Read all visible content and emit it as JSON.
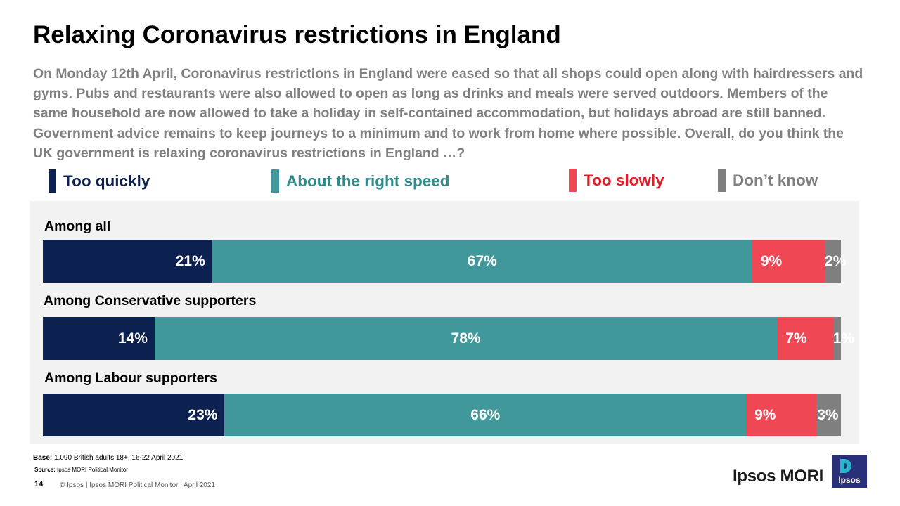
{
  "title": "Relaxing Coronavirus restrictions in England",
  "intro": "On Monday 12th April, Coronavirus restrictions in England were eased so that all shops could open along with hairdressers and gyms. Pubs and restaurants were also allowed to open as long as drinks and meals were served outdoors. Members of the same household are now allowed to take a holiday in self-contained accommodation, but holidays abroad are still banned. Government advice remains to keep journeys to a minimum and to work from home where possible. Overall, do you think the UK government is relaxing coronavirus restrictions in England …?",
  "chart_data": {
    "type": "bar",
    "orientation": "horizontal",
    "stacked": true,
    "categories": [
      "Among all",
      "Among Conservative supporters",
      "Among Labour supporters"
    ],
    "series": [
      {
        "name": "Too quickly",
        "color": "#0d2150",
        "values": [
          21,
          14,
          23
        ],
        "labels": [
          "21%",
          "14%",
          "23%"
        ]
      },
      {
        "name": "About the right speed",
        "color": "#41989a",
        "values": [
          67,
          78,
          66
        ],
        "labels": [
          "67%",
          "78%",
          "66%"
        ]
      },
      {
        "name": "Too slowly",
        "color": "#f04755",
        "values": [
          9,
          7,
          9
        ],
        "labels": [
          "9%",
          "7%",
          "9%"
        ]
      },
      {
        "name": "Don’t know",
        "color": "#7f7f7f",
        "values": [
          2,
          1,
          3
        ],
        "labels": [
          "2%",
          "1%",
          "3%"
        ]
      }
    ]
  },
  "legend_text_colors": [
    "#0d2150",
    "#2e8b8b",
    "#e21b24",
    "#7f7f7f"
  ],
  "base_label": "Base:",
  "base_text": "1,090 British adults 18+,  16-22 April 2021",
  "source_label": "Source:",
  "source_text": "Ipsos MORI Political Monitor",
  "page_number": "14",
  "footer": "© Ipsos | Ipsos MORI  Political Monitor | April 2021",
  "brand": "Ipsos MORI",
  "logo_text": "Ipsos"
}
